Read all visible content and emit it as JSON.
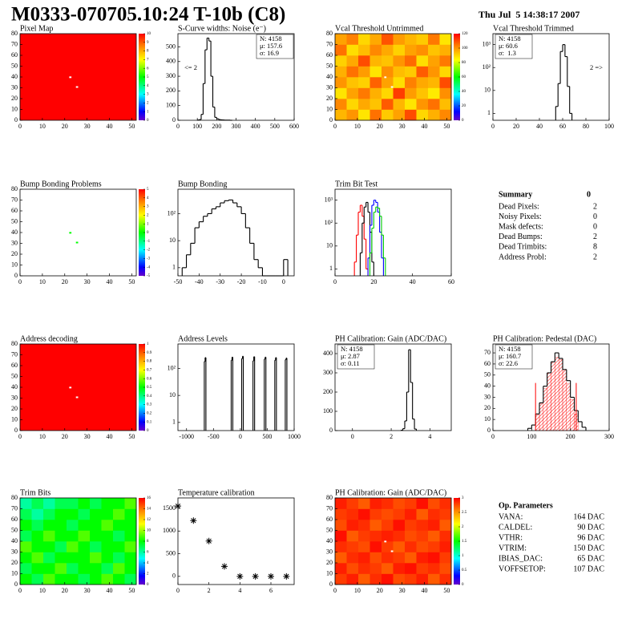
{
  "header": {
    "title": "M0333-070705.10:24 T-10b (C8)",
    "date": "Thu Jul  5 14:38:17 2007"
  },
  "chart_data": [
    {
      "type": "heatmap",
      "title": "Pixel Map",
      "xlim": [
        0,
        52
      ],
      "ylim": [
        0,
        80
      ],
      "xticks": [
        0,
        10,
        20,
        30,
        40,
        50
      ],
      "yticks": [
        0,
        10,
        20,
        30,
        40,
        50,
        60,
        70,
        80
      ],
      "zlim": [
        0,
        10
      ],
      "zticks": [
        0,
        1,
        2,
        3,
        4,
        5,
        6,
        7,
        8,
        9,
        10
      ],
      "uniform_value": 10,
      "empty_pixels": [
        {
          "x": 22,
          "y": 39
        },
        {
          "x": 25,
          "y": 30
        }
      ]
    },
    {
      "type": "histogram",
      "title": "S-Curve widths: Noise (e⁻)",
      "xlim": [
        0,
        600
      ],
      "ylim": [
        0,
        590
      ],
      "xticks": [
        0,
        100,
        200,
        300,
        400,
        500,
        600
      ],
      "yticks": [
        0,
        100,
        200,
        300,
        400,
        500
      ],
      "color": "#000000",
      "bins": [
        100,
        110,
        120,
        130,
        140,
        150,
        160,
        170,
        180,
        190,
        200,
        210,
        220,
        230,
        240,
        250,
        260,
        270,
        280
      ],
      "counts": [
        2,
        5,
        40,
        250,
        480,
        560,
        540,
        300,
        90,
        20,
        10,
        5,
        3,
        2,
        1,
        1,
        1,
        0
      ],
      "stats": [
        {
          "text": "N: 4158"
        },
        {
          "text": "μ: 157.6"
        },
        {
          "text": "σ: 16.9"
        }
      ],
      "stats_corner": "right",
      "annotation": "<= 2",
      "annotation_side": "left"
    },
    {
      "type": "heatmap",
      "title": "Vcal Threshold Untrimmed",
      "xlim": [
        0,
        52
      ],
      "ylim": [
        0,
        80
      ],
      "xticks": [
        0,
        10,
        20,
        30,
        40,
        50
      ],
      "yticks": [
        0,
        10,
        20,
        30,
        40,
        50,
        60,
        70,
        80
      ],
      "zlim": [
        0,
        120
      ],
      "zticks": [
        0,
        20,
        40,
        60,
        80,
        100,
        120
      ],
      "values": [
        [
          95,
          100,
          88,
          105,
          92,
          98,
          110,
          90,
          96,
          102
        ],
        [
          102,
          90,
          97,
          93,
          108,
          95,
          88,
          100,
          105,
          94
        ],
        [
          88,
          98,
          104,
          96,
          90,
          112,
          99,
          93,
          87,
          101
        ],
        [
          100,
          93,
          91,
          107,
          98,
          89,
          103,
          97,
          95,
          110
        ],
        [
          96,
          105,
          99,
          88,
          101,
          94,
          92,
          108,
          100,
          90
        ],
        [
          91,
          97,
          110,
          95,
          93,
          100,
          106,
          89,
          98,
          104
        ],
        [
          105,
          89,
          94,
          102,
          97,
          91,
          98,
          101,
          93,
          96
        ],
        [
          98,
          103,
          90,
          97,
          109,
          99,
          95,
          92,
          104,
          88
        ]
      ],
      "empty_pixels": [
        {
          "x": 22,
          "y": 39
        },
        {
          "x": 25,
          "y": 30
        }
      ]
    },
    {
      "type": "histogram",
      "title": "Vcal Threshold Trimmed",
      "log_y": true,
      "xlim": [
        0,
        100
      ],
      "ylim": [
        0.5,
        3000
      ],
      "xticks": [
        0,
        20,
        40,
        60,
        80,
        100
      ],
      "yticks": [
        1,
        10,
        {
          "value": 100,
          "label": "10²"
        },
        {
          "value": 1000,
          "label": "10³"
        }
      ],
      "color": "#000000",
      "bins": [
        54,
        56,
        58,
        60,
        62,
        64,
        66,
        68
      ],
      "counts": [
        2,
        20,
        500,
        1000,
        300,
        15,
        1
      ],
      "stats": [
        {
          "text": "N: 4158"
        },
        {
          "text": "μ: 60.6"
        },
        {
          "text": "σ:  1.3"
        }
      ],
      "stats_corner": "left",
      "annotation": "2 =>",
      "annotation_side": "right"
    },
    {
      "type": "heatmap",
      "title": "Bump Bonding Problems",
      "xlim": [
        0,
        52
      ],
      "ylim": [
        0,
        80
      ],
      "xticks": [
        0,
        10,
        20,
        30,
        40,
        50
      ],
      "yticks": [
        0,
        10,
        20,
        30,
        40,
        50,
        60,
        70,
        80
      ],
      "zlim": [
        -5,
        5
      ],
      "zticks": [
        -5,
        -4,
        -3,
        -2,
        -1,
        0,
        1,
        2,
        3,
        4,
        5
      ],
      "pixels": [
        {
          "x": 22,
          "y": 39,
          "value": 0
        },
        {
          "x": 25,
          "y": 30,
          "value": 0
        }
      ]
    },
    {
      "type": "histogram",
      "title": "Bump Bonding",
      "log_y": true,
      "xlim": [
        -50,
        5
      ],
      "ylim": [
        0.5,
        800
      ],
      "xticks": [
        -50,
        -40,
        -30,
        -20,
        -10,
        0
      ],
      "yticks": [
        1,
        10,
        {
          "value": 100,
          "label": "10²"
        }
      ],
      "color": "#000000",
      "bins": [
        -48,
        -46,
        -44,
        -42,
        -40,
        -38,
        -36,
        -34,
        -32,
        -30,
        -28,
        -26,
        -24,
        -22,
        -20,
        -18,
        -16,
        -14,
        -12,
        -10,
        -8,
        -6,
        -4,
        -2,
        0,
        2
      ],
      "counts": [
        1,
        3,
        8,
        30,
        50,
        80,
        100,
        150,
        180,
        250,
        300,
        320,
        250,
        180,
        100,
        30,
        8,
        2,
        1,
        0,
        0,
        0,
        0,
        0,
        2
      ]
    },
    {
      "type": "histogram",
      "title": "Trim Bit Test",
      "log_y": true,
      "xlim": [
        0,
        60
      ],
      "ylim": [
        0.5,
        3000
      ],
      "xticks": [
        0,
        20,
        40,
        60
      ],
      "yticks": [
        1,
        10,
        {
          "value": 100,
          "label": "10²"
        },
        {
          "value": 1000,
          "label": "10³"
        }
      ],
      "series": [
        {
          "color": "#ff0000",
          "bins": [
            10,
            11,
            12,
            13,
            14,
            15,
            16,
            17
          ],
          "counts": [
            2,
            30,
            300,
            600,
            200,
            20,
            1
          ]
        },
        {
          "color": "#000000",
          "bins": [
            13,
            14,
            15,
            16,
            17,
            18,
            19,
            20
          ],
          "counts": [
            5,
            100,
            500,
            800,
            300,
            40,
            2
          ]
        },
        {
          "color": "#0000ff",
          "bins": [
            17,
            18,
            19,
            20,
            21,
            22,
            23,
            24,
            25
          ],
          "counts": [
            3,
            80,
            600,
            1000,
            800,
            300,
            40,
            3
          ]
        },
        {
          "color": "#00cc00",
          "bins": [
            18,
            19,
            20,
            21,
            22,
            23,
            24,
            25,
            26
          ],
          "counts": [
            5,
            60,
            300,
            500,
            450,
            200,
            30,
            3
          ]
        }
      ]
    },
    {
      "type": "heatmap",
      "title": "Address decoding",
      "xlim": [
        0,
        52
      ],
      "ylim": [
        0,
        80
      ],
      "xticks": [
        0,
        10,
        20,
        30,
        40,
        50
      ],
      "yticks": [
        0,
        10,
        20,
        30,
        40,
        50,
        60,
        70,
        80
      ],
      "zlim": [
        0,
        1
      ],
      "zticks": [
        0,
        0.1,
        0.2,
        0.3,
        0.4,
        0.5,
        0.6,
        0.7,
        0.8,
        0.9,
        1
      ],
      "uniform_value": 1,
      "empty_pixels": [
        {
          "x": 22,
          "y": 39
        },
        {
          "x": 25,
          "y": 30
        }
      ]
    },
    {
      "type": "histogram",
      "title": "Address Levels",
      "log_y": true,
      "xlim": [
        -1160,
        1000
      ],
      "ylim": [
        0.5,
        800
      ],
      "xticks": [
        -1000,
        -500,
        0,
        500,
        1000
      ],
      "yticks": [
        1,
        10,
        {
          "value": 100,
          "label": "10²"
        }
      ],
      "color": "#000000",
      "series": [
        {
          "bins": [
            -670,
            -655,
            -640
          ],
          "counts": [
            180,
            250
          ]
        },
        {
          "bins": [
            -170,
            -155,
            -140
          ],
          "counts": [
            200,
            260
          ]
        },
        {
          "bins": [
            25,
            40,
            55
          ],
          "counts": [
            230,
            280
          ]
        },
        {
          "bins": [
            235,
            250,
            265
          ],
          "counts": [
            190,
            270
          ]
        },
        {
          "bins": [
            445,
            460,
            475
          ],
          "counts": [
            220,
            260
          ]
        },
        {
          "bins": [
            640,
            655,
            670
          ],
          "counts": [
            200,
            250
          ]
        },
        {
          "bins": [
            835,
            850,
            865
          ],
          "counts": [
            210,
            240
          ]
        }
      ]
    },
    {
      "type": "histogram",
      "title": "PH Calibration: Gain (ADC/DAC)",
      "xlim": [
        -0.9,
        5.1
      ],
      "ylim": [
        0,
        450
      ],
      "xticks": [
        0,
        2,
        4
      ],
      "yticks": [
        0,
        100,
        200,
        300,
        400
      ],
      "color": "#000000",
      "bins": [
        2.5,
        2.6,
        2.7,
        2.8,
        2.9,
        3.0,
        3.1,
        3.2,
        3.3
      ],
      "counts": [
        2,
        10,
        50,
        200,
        420,
        250,
        60,
        8
      ],
      "stats": [
        {
          "text": "N: 4158"
        },
        {
          "text": "μ: 2.87"
        },
        {
          "text": "σ: 0.11"
        }
      ],
      "stats_corner": "left"
    },
    {
      "type": "histogram",
      "title": "PH Calibration: Pedestal (DAC)",
      "xlim": [
        0,
        300
      ],
      "ylim": [
        0,
        78
      ],
      "xticks": [
        0,
        100,
        200,
        300
      ],
      "yticks": [
        0,
        10,
        20,
        30,
        40,
        50,
        60,
        70
      ],
      "series": [
        {
          "color": "#ff0000",
          "fill": "hatch",
          "bins": [
            110,
            120,
            130,
            140,
            150,
            160,
            170,
            180,
            190,
            200,
            210,
            220
          ],
          "counts": [
            14,
            24,
            38,
            52,
            62,
            66,
            64,
            55,
            42,
            28,
            15
          ]
        },
        {
          "color": "#000000",
          "bins": [
            90,
            100,
            110,
            120,
            130,
            140,
            150,
            160,
            170,
            180,
            190,
            200,
            210,
            220,
            230,
            240
          ],
          "counts": [
            2,
            5,
            15,
            25,
            40,
            52,
            62,
            70,
            65,
            55,
            45,
            30,
            18,
            8,
            3
          ]
        }
      ],
      "cut_lines": [
        110,
        215
      ],
      "cut_color": "#ff0000",
      "stats": [
        {
          "text": "N: 4158"
        },
        {
          "text": "μ: 160.7",
          "color": "#ff0000"
        },
        {
          "text": "σ: 22.6",
          "color": "#ff0000"
        }
      ],
      "stats_corner": "left"
    },
    {
      "type": "heatmap",
      "title": "Trim Bits",
      "xlim": [
        0,
        52
      ],
      "ylim": [
        0,
        80
      ],
      "xticks": [
        0,
        10,
        20,
        30,
        40,
        50
      ],
      "yticks": [
        0,
        10,
        20,
        30,
        40,
        50,
        60,
        70,
        80
      ],
      "zlim": [
        0,
        16
      ],
      "zticks": [
        0,
        2,
        4,
        6,
        8,
        10,
        12,
        14,
        16
      ],
      "values": [
        [
          8,
          7,
          9,
          8,
          8,
          7,
          8,
          9,
          8,
          7
        ],
        [
          7,
          8,
          8,
          9,
          7,
          8,
          8,
          7,
          9,
          8
        ],
        [
          8,
          9,
          7,
          8,
          8,
          8,
          9,
          8,
          7,
          8
        ],
        [
          9,
          8,
          8,
          7,
          9,
          8,
          7,
          8,
          8,
          9
        ],
        [
          7,
          8,
          9,
          8,
          8,
          9,
          8,
          8,
          7,
          8
        ],
        [
          8,
          7,
          8,
          8,
          7,
          8,
          8,
          9,
          8,
          8
        ],
        [
          7,
          6,
          7,
          8,
          8,
          7,
          8,
          8,
          9,
          8
        ],
        [
          6,
          7,
          6,
          7,
          7,
          8,
          7,
          8,
          8,
          9
        ]
      ]
    },
    {
      "type": "scatter",
      "title": "Temperature calibration",
      "xlim": [
        0,
        7.5
      ],
      "ylim": [
        -180,
        1730
      ],
      "xticks": [
        0,
        2,
        4,
        6
      ],
      "yticks": [
        0,
        500,
        1000,
        1500
      ],
      "color": "#000000",
      "x": [
        0,
        1,
        2,
        3,
        4,
        5,
        6,
        7
      ],
      "y": [
        1550,
        1230,
        780,
        220,
        0,
        0,
        0,
        0
      ]
    },
    {
      "type": "heatmap",
      "title": "PH Calibration: Gain (ADC/DAC)",
      "xlim": [
        0,
        52
      ],
      "ylim": [
        0,
        80
      ],
      "xticks": [
        0,
        10,
        20,
        30,
        40,
        50
      ],
      "yticks": [
        0,
        10,
        20,
        30,
        40,
        50,
        60,
        70,
        80
      ],
      "zlim": [
        0,
        3
      ],
      "zticks": [
        0,
        0.5,
        1,
        1.5,
        2,
        2.5,
        3
      ],
      "values": [
        [
          2.8,
          2.9,
          2.7,
          2.85,
          2.95,
          2.75,
          2.8,
          2.9,
          2.7,
          2.85
        ],
        [
          2.9,
          2.75,
          2.85,
          2.8,
          2.7,
          2.9,
          2.95,
          2.8,
          2.85,
          2.75
        ],
        [
          2.7,
          2.85,
          2.9,
          2.75,
          2.85,
          2.8,
          2.7,
          2.9,
          2.95,
          2.8
        ],
        [
          2.85,
          2.8,
          2.75,
          2.95,
          2.8,
          2.7,
          2.85,
          2.75,
          2.8,
          2.9
        ],
        [
          2.95,
          2.7,
          2.8,
          2.85,
          2.9,
          2.85,
          2.75,
          2.8,
          2.7,
          2.85
        ],
        [
          2.75,
          2.9,
          2.85,
          2.7,
          2.8,
          2.95,
          2.8,
          2.85,
          2.9,
          2.7
        ],
        [
          2.8,
          2.85,
          2.95,
          2.8,
          2.75,
          2.8,
          2.9,
          2.7,
          2.85,
          2.8
        ],
        [
          2.9,
          2.8,
          2.7,
          2.9,
          2.85,
          2.75,
          2.8,
          2.95,
          2.75,
          2.85
        ]
      ],
      "empty_pixels": [
        {
          "x": 22,
          "y": 39
        },
        {
          "x": 25,
          "y": 30
        }
      ]
    }
  ],
  "summary": {
    "title": "Summary",
    "value": 0,
    "rows": [
      {
        "label": "Dead Pixels:",
        "value": 2
      },
      {
        "label": "Noisy Pixels:",
        "value": 0
      },
      {
        "label": "Mask defects:",
        "value": 0
      },
      {
        "label": "Dead Bumps:",
        "value": 2
      },
      {
        "label": "Dead Trimbits:",
        "value": 8
      },
      {
        "label": "Address Probl:",
        "value": 2
      }
    ]
  },
  "parameters": {
    "title": "Op. Parameters",
    "rows": [
      {
        "label": "VANA:",
        "value": "164 DAC"
      },
      {
        "label": "CALDEL:",
        "value": "90 DAC"
      },
      {
        "label": "VTHR:",
        "value": "96 DAC"
      },
      {
        "label": "VTRIM:",
        "value": "150 DAC"
      },
      {
        "label": "IBIAS_DAC:",
        "value": "65 DAC"
      },
      {
        "label": "VOFFSETOP:",
        "value": "107 DAC"
      }
    ]
  }
}
